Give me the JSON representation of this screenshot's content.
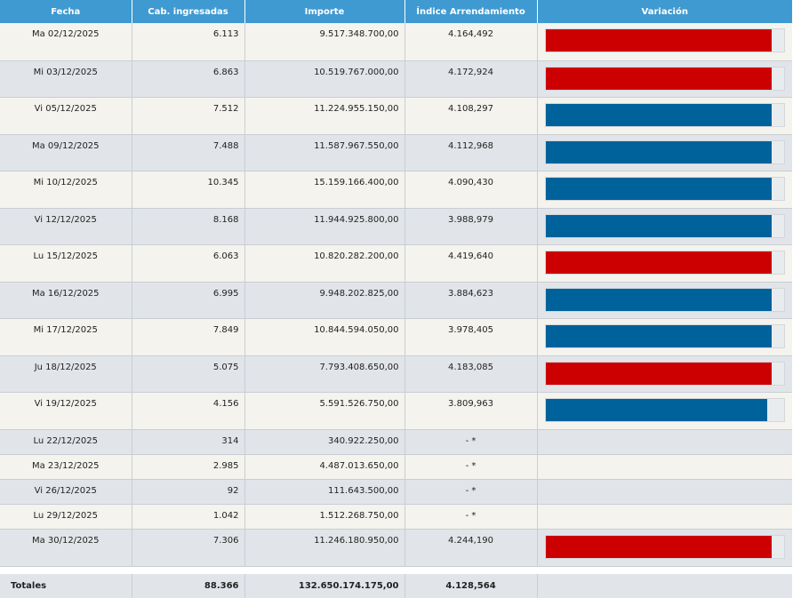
{
  "table": {
    "headers": [
      "Fecha",
      "Cab. ingresadas",
      "Importe",
      "Índice Arrendamiento",
      "Variación"
    ],
    "rows": [
      {
        "fecha": "Ma 02/12/2025",
        "cab": "6.113",
        "importe": "9.517.348.700,00",
        "indice": "4.164,492",
        "variacion": {
          "color": "#cc0000",
          "level": 0.95
        }
      },
      {
        "fecha": "Mi 03/12/2025",
        "cab": "6.863",
        "importe": "10.519.767.000,00",
        "indice": "4.172,924",
        "variacion": {
          "color": "#cc0000",
          "level": 0.95
        }
      },
      {
        "fecha": "Vi 05/12/2025",
        "cab": "7.512",
        "importe": "11.224.955.150,00",
        "indice": "4.108,297",
        "variacion": {
          "color": "#00629b",
          "level": 0.95
        }
      },
      {
        "fecha": "Ma 09/12/2025",
        "cab": "7.488",
        "importe": "11.587.967.550,00",
        "indice": "4.112,968",
        "variacion": {
          "color": "#00629b",
          "level": 0.95
        }
      },
      {
        "fecha": "Mi 10/12/2025",
        "cab": "10.345",
        "importe": "15.159.166.400,00",
        "indice": "4.090,430",
        "variacion": {
          "color": "#00629b",
          "level": 0.95
        }
      },
      {
        "fecha": "Vi 12/12/2025",
        "cab": "8.168",
        "importe": "11.944.925.800,00",
        "indice": "3.988,979",
        "variacion": {
          "color": "#00629b",
          "level": 0.95
        }
      },
      {
        "fecha": "Lu 15/12/2025",
        "cab": "6.063",
        "importe": "10.820.282.200,00",
        "indice": "4.419,640",
        "variacion": {
          "color": "#cc0000",
          "level": 0.95
        }
      },
      {
        "fecha": "Ma 16/12/2025",
        "cab": "6.995",
        "importe": "9.948.202.825,00",
        "indice": "3.884,623",
        "variacion": {
          "color": "#00629b",
          "level": 0.95
        }
      },
      {
        "fecha": "Mi 17/12/2025",
        "cab": "7.849",
        "importe": "10.844.594.050,00",
        "indice": "3.978,405",
        "variacion": {
          "color": "#00629b",
          "level": 0.95
        }
      },
      {
        "fecha": "Ju 18/12/2025",
        "cab": "5.075",
        "importe": "7.793.408.650,00",
        "indice": "4.183,085",
        "variacion": {
          "color": "#cc0000",
          "level": 0.95
        }
      },
      {
        "fecha": "Vi 19/12/2025",
        "cab": "4.156",
        "importe": "5.591.526.750,00",
        "indice": "3.809,963",
        "variacion": {
          "color": "#00629b",
          "level": 0.93
        }
      },
      {
        "fecha": "Lu 22/12/2025",
        "cab": "314",
        "importe": "340.922.250,00",
        "indice": "- *",
        "variacion": null
      },
      {
        "fecha": "Ma 23/12/2025",
        "cab": "2.985",
        "importe": "4.487.013.650,00",
        "indice": "- *",
        "variacion": null
      },
      {
        "fecha": "Vi 26/12/2025",
        "cab": "92",
        "importe": "111.643.500,00",
        "indice": "- *",
        "variacion": null
      },
      {
        "fecha": "Lu 29/12/2025",
        "cab": "1.042",
        "importe": "1.512.268.750,00",
        "indice": "- *",
        "variacion": null
      },
      {
        "fecha": "Ma 30/12/2025",
        "cab": "7.306",
        "importe": "11.246.180.950,00",
        "indice": "4.244,190",
        "variacion": {
          "color": "#cc0000",
          "level": 0.95
        }
      }
    ],
    "totals": {
      "label": "Totales",
      "cab": "88.366",
      "importe": "132.650.174.175,00",
      "indice": "4.128,564"
    }
  }
}
